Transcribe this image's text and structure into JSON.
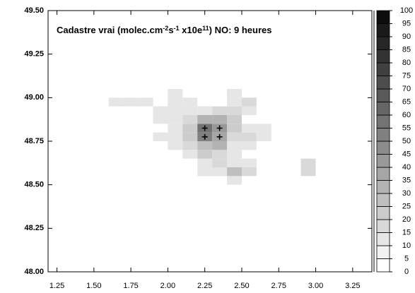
{
  "chart_data": {
    "type": "heatmap",
    "title_parts": [
      "Cadastre vrai (molec.cm",
      "-2",
      "s",
      "-1",
      " x10e",
      "11",
      ") NO: 9 heures"
    ],
    "xlim": [
      1.19,
      3.38
    ],
    "ylim": [
      48,
      49.5
    ],
    "xticks": [
      1.25,
      {
        "value": 1.5,
        "label": "1.50"
      },
      1.75,
      {
        "value": 2,
        "label": "2.00"
      },
      2.25,
      {
        "value": 2.5,
        "label": "2.50"
      },
      2.75,
      {
        "value": 3,
        "label": "3.00"
      },
      3.25
    ],
    "yticks": [
      {
        "value": 48,
        "label": "48.00"
      },
      48.25,
      {
        "value": 48.5,
        "label": "48.50"
      },
      48.75,
      {
        "value": 49,
        "label": "49.00"
      },
      49.25,
      {
        "value": 49.5,
        "label": "49.50"
      }
    ],
    "xbins": [
      1.6,
      1.7,
      1.8,
      1.9,
      2.0,
      2.1,
      2.2,
      2.3,
      2.4,
      2.5,
      2.6,
      2.7,
      2.8,
      2.9,
      3.0
    ],
    "ybins": [
      48.5,
      48.55,
      48.6,
      48.65,
      48.7,
      48.75,
      48.8,
      48.85,
      48.9,
      48.95,
      49.0,
      49.05
    ],
    "values": [
      [
        null,
        null,
        null,
        null,
        null,
        null,
        null,
        null,
        10,
        null,
        null,
        null,
        null,
        null
      ],
      [
        null,
        null,
        null,
        null,
        null,
        null,
        10,
        10,
        25,
        15,
        null,
        null,
        null,
        15
      ],
      [
        null,
        null,
        null,
        null,
        null,
        null,
        10,
        15,
        10,
        10,
        null,
        null,
        null,
        15
      ],
      [
        null,
        null,
        null,
        null,
        null,
        10,
        20,
        15,
        10,
        null,
        null,
        null,
        null,
        null
      ],
      [
        null,
        null,
        null,
        null,
        10,
        15,
        25,
        30,
        10,
        10,
        null,
        null,
        null,
        null
      ],
      [
        null,
        null,
        null,
        10,
        10,
        20,
        50,
        35,
        15,
        15,
        10,
        null,
        null,
        null
      ],
      [
        null,
        null,
        null,
        null,
        10,
        20,
        55,
        40,
        20,
        10,
        10,
        null,
        null,
        null
      ],
      [
        null,
        null,
        null,
        10,
        10,
        15,
        30,
        30,
        20,
        null,
        null,
        null,
        null,
        null
      ],
      [
        null,
        null,
        null,
        10,
        10,
        10,
        10,
        15,
        15,
        10,
        null,
        null,
        null,
        null
      ],
      [
        10,
        10,
        10,
        null,
        10,
        10,
        null,
        null,
        10,
        15,
        null,
        null,
        null,
        null
      ],
      [
        null,
        null,
        null,
        null,
        10,
        null,
        null,
        null,
        10,
        null,
        null,
        null,
        null,
        null
      ]
    ],
    "markers": {
      "x": [
        2.25,
        2.35,
        2.25,
        2.35
      ],
      "y": [
        48.825,
        48.825,
        48.775,
        48.775
      ]
    },
    "colorlim": [
      0,
      100
    ],
    "colorticks": [
      0,
      5,
      10,
      15,
      20,
      25,
      30,
      35,
      40,
      45,
      50,
      55,
      60,
      65,
      70,
      75,
      80,
      85,
      90,
      95,
      100
    ],
    "colormap": [
      "#ffffff",
      "#000000"
    ]
  }
}
